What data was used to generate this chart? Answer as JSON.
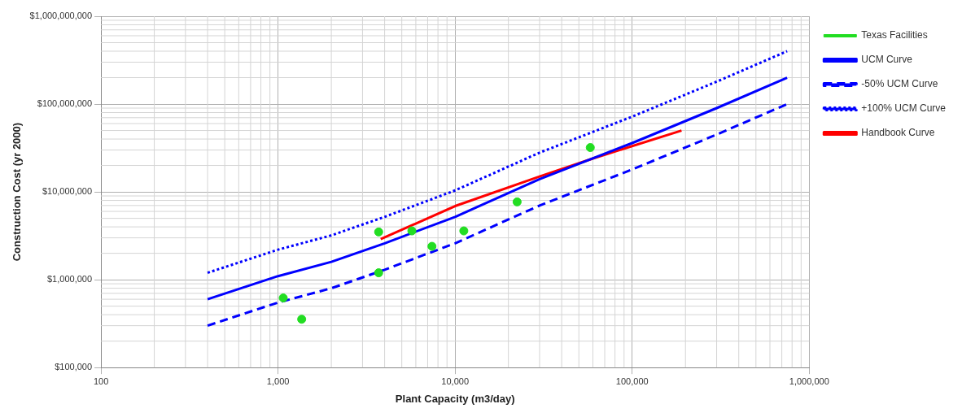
{
  "chart_data": {
    "type": "scatter",
    "xlabel": "Plant Capacity (m3/day)",
    "ylabel": "Construction Cost (yr 2000)",
    "log": "xy",
    "grid": true,
    "legend": "right",
    "xlim": [
      100,
      1000000
    ],
    "xticks": [
      {
        "value": 100,
        "label": "100"
      },
      {
        "value": 1000,
        "label": "1,000"
      },
      {
        "value": 10000,
        "label": "10,000"
      },
      {
        "value": 100000,
        "label": "100,000"
      },
      {
        "value": 1000000,
        "label": "1,000,000"
      }
    ],
    "ylim": [
      100000,
      1000000000
    ],
    "yticks": [
      {
        "value": 100000,
        "label": "$100,000"
      },
      {
        "value": 1000000,
        "label": "$1,000,000"
      },
      {
        "value": 10000000,
        "label": "$10,000,000"
      },
      {
        "value": 100000000,
        "label": "$100,000,000"
      },
      {
        "value": 1000000000,
        "label": "$1,000,000,000"
      }
    ],
    "series": [
      {
        "name": "Texas Facilities",
        "type": "scatter",
        "marker": "circle",
        "color": "#22dd22",
        "x": [
          1070,
          1360,
          3700,
          3700,
          5700,
          7400,
          11200,
          22400,
          58000
        ],
        "values": [
          620000,
          355000,
          3500000,
          1200000,
          3600000,
          2400000,
          3600000,
          7700000,
          32000000
        ]
      },
      {
        "name": "UCM Curve",
        "type": "line",
        "marker": "none",
        "line_style": "solid",
        "color": "#0000ff",
        "x": [
          400,
          1000,
          2000,
          4000,
          10000,
          30000,
          100000,
          300000,
          750000
        ],
        "values": [
          600000,
          1100000,
          1600000,
          2600000,
          5200000,
          14000000,
          36000000,
          90000000,
          200000000
        ]
      },
      {
        "name": "-50% UCM Curve",
        "type": "line",
        "marker": "none",
        "line_style": "dashed",
        "color": "#0000ff",
        "x": [
          400,
          1000,
          2000,
          4000,
          10000,
          30000,
          100000,
          300000,
          750000
        ],
        "values": [
          300000,
          550000,
          800000,
          1300000,
          2600000,
          7000000,
          18000000,
          45000000,
          100000000
        ]
      },
      {
        "name": "+100% UCM Curve",
        "type": "line",
        "marker": "none",
        "line_style": "dotted",
        "color": "#0000ff",
        "x": [
          400,
          1000,
          2000,
          4000,
          10000,
          30000,
          100000,
          300000,
          750000
        ],
        "values": [
          1200000,
          2200000,
          3200000,
          5200000,
          10400000,
          28000000,
          72000000,
          180000000,
          400000000
        ]
      },
      {
        "name": "Handbook Curve",
        "type": "line",
        "marker": "none",
        "line_style": "solid",
        "color": "#ff0000",
        "x": [
          3800,
          10000,
          30000,
          60000,
          190000
        ],
        "values": [
          2900000,
          6900000,
          15000000,
          24000000,
          50000000
        ]
      }
    ]
  }
}
